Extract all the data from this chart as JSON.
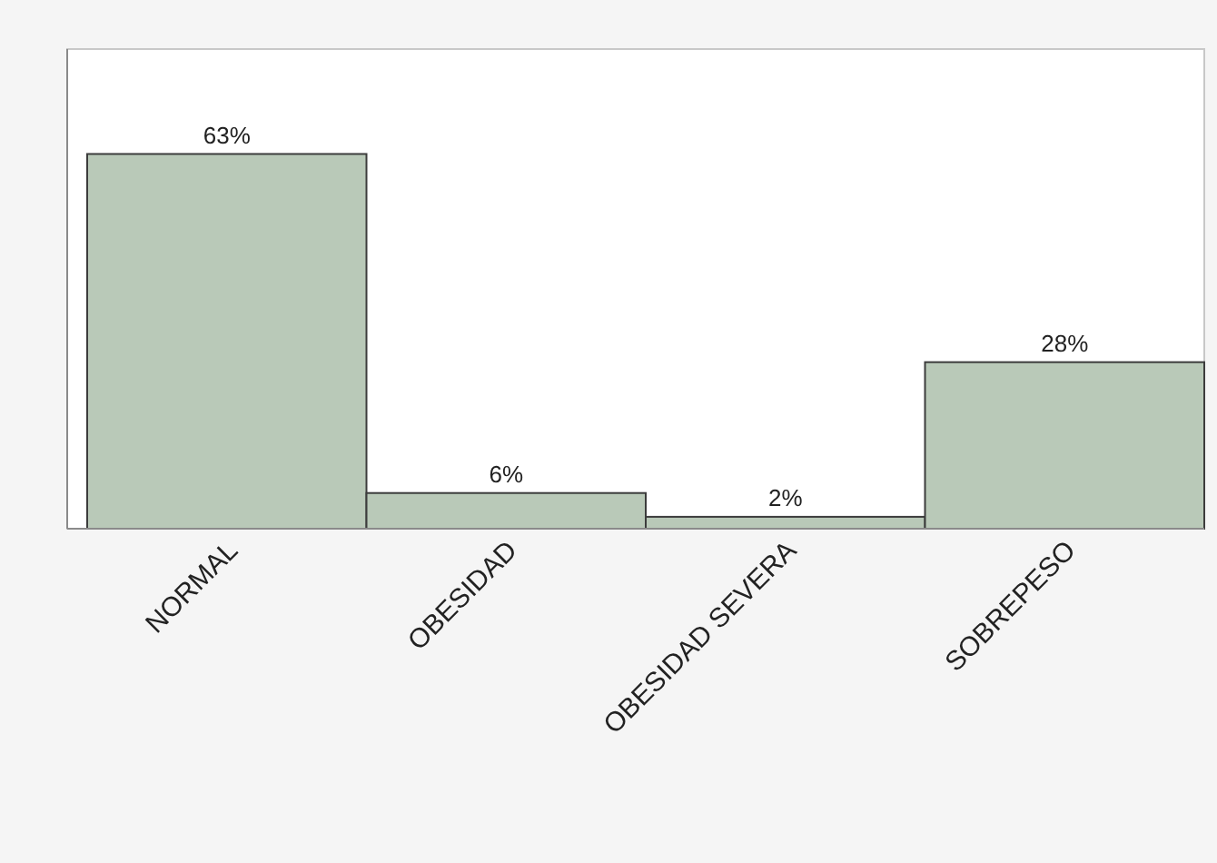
{
  "chart_data": {
    "type": "bar",
    "categories": [
      "NORMAL",
      "OBESIDAD",
      "OBESIDAD SEVERA",
      "SOBREPESO"
    ],
    "values": [
      63,
      6,
      2,
      28
    ],
    "color": "#b9c9b8",
    "value_labels": [
      "63%",
      "6%",
      "2%",
      "28%"
    ]
  }
}
